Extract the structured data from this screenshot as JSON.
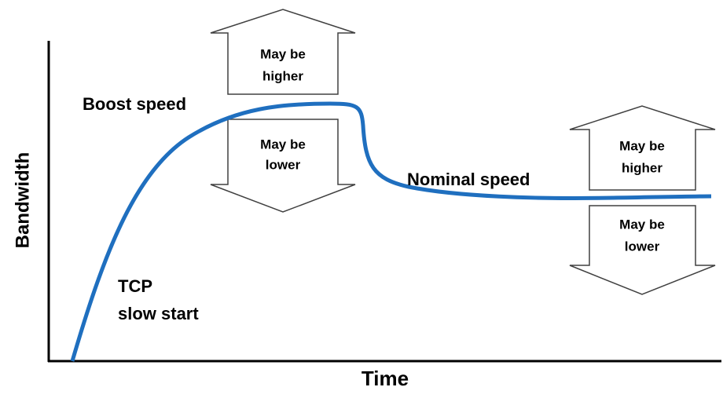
{
  "axes": {
    "y_label": "Bandwidth",
    "x_label": "Time"
  },
  "annotations": {
    "boost": "Boost speed",
    "nominal": "Nominal speed",
    "slow_start": [
      "TCP",
      "slow start"
    ]
  },
  "arrows": [
    {
      "lines": [
        "May be",
        "higher"
      ]
    },
    {
      "lines": [
        "May be",
        "lower"
      ]
    },
    {
      "lines": [
        "May be",
        "higher"
      ]
    },
    {
      "lines": [
        "May be",
        "lower"
      ]
    }
  ]
}
